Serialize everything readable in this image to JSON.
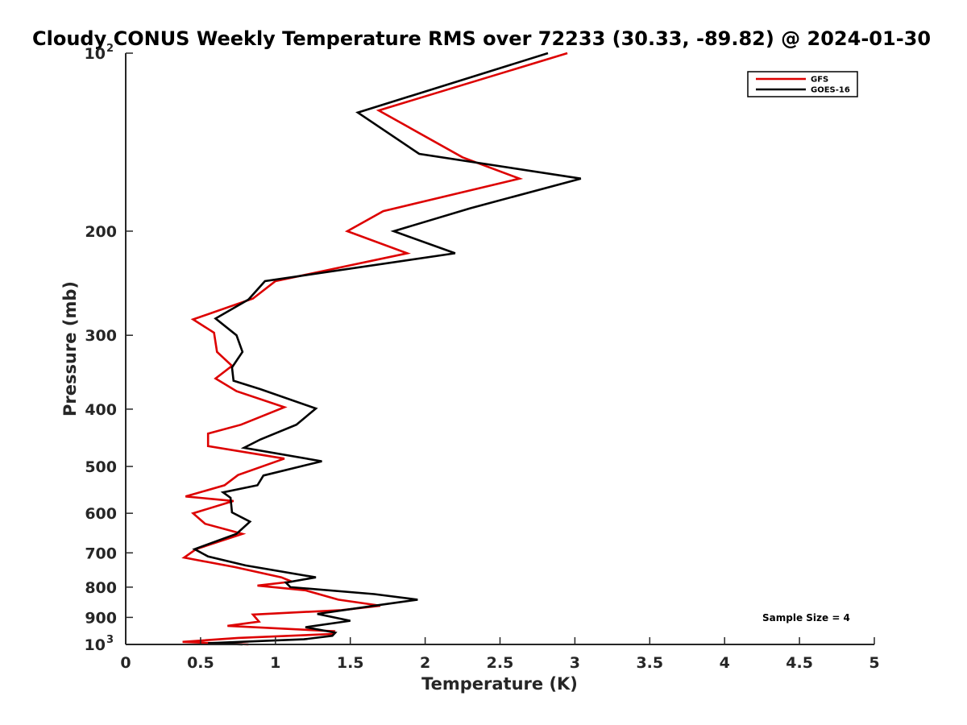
{
  "chart_data": {
    "type": "line",
    "title": "Cloudy CONUS Weekly Temperature RMS over 72233 (30.33, -89.82) @ 2024-01-30",
    "xlabel": "Temperature (K)",
    "ylabel": "Pressure (mb)",
    "xlim": [
      0,
      5
    ],
    "ylim": [
      100,
      1000
    ],
    "yscale": "log",
    "yreversed": true,
    "grid": false,
    "legend_position": "top-right",
    "x_ticks": [
      0,
      0.5,
      1,
      1.5,
      2,
      2.5,
      3,
      3.5,
      4,
      4.5,
      5
    ],
    "x_tick_labels": [
      "0",
      "0.5",
      "1",
      "1.5",
      "2",
      "2.5",
      "3",
      "3.5",
      "4",
      "4.5",
      "5"
    ],
    "y_ticks": [
      {
        "value": 100,
        "base": "10",
        "exp": "2"
      },
      {
        "value": 200,
        "label": "200"
      },
      {
        "value": 300,
        "label": "300"
      },
      {
        "value": 400,
        "label": "400"
      },
      {
        "value": 500,
        "label": "500"
      },
      {
        "value": 600,
        "label": "600"
      },
      {
        "value": 700,
        "label": "700"
      },
      {
        "value": 800,
        "label": "800"
      },
      {
        "value": 900,
        "label": "900"
      },
      {
        "value": 1000,
        "base": "10",
        "exp": "3"
      }
    ],
    "annotation": "Sample Size = 4",
    "series": [
      {
        "name": "GFS",
        "color": "#dd0000",
        "points": [
          [
            2.95,
            100
          ],
          [
            1.69,
            125
          ],
          [
            2.25,
            150
          ],
          [
            2.63,
            163
          ],
          [
            1.72,
            185
          ],
          [
            1.48,
            200
          ],
          [
            1.88,
            218
          ],
          [
            1.0,
            243
          ],
          [
            0.85,
            260
          ],
          [
            0.45,
            282
          ],
          [
            0.59,
            297
          ],
          [
            0.61,
            320
          ],
          [
            0.71,
            338
          ],
          [
            0.6,
            355
          ],
          [
            0.74,
            373
          ],
          [
            1.06,
            397
          ],
          [
            0.77,
            425
          ],
          [
            0.55,
            440
          ],
          [
            0.55,
            462
          ],
          [
            1.06,
            485
          ],
          [
            0.75,
            517
          ],
          [
            0.66,
            538
          ],
          [
            0.4,
            562
          ],
          [
            0.72,
            572
          ],
          [
            0.45,
            600
          ],
          [
            0.53,
            625
          ],
          [
            0.78,
            650
          ],
          [
            0.47,
            690
          ],
          [
            0.39,
            713
          ],
          [
            0.73,
            740
          ],
          [
            1.04,
            770
          ],
          [
            1.11,
            783
          ],
          [
            0.88,
            795
          ],
          [
            1.2,
            810
          ],
          [
            1.42,
            840
          ],
          [
            1.7,
            860
          ],
          [
            1.44,
            875
          ],
          [
            0.85,
            890
          ],
          [
            0.89,
            915
          ],
          [
            0.68,
            930
          ],
          [
            1.39,
            950
          ],
          [
            1.38,
            960
          ],
          [
            0.75,
            975
          ],
          [
            0.38,
            990
          ],
          [
            0.82,
            1000
          ]
        ]
      },
      {
        "name": "GOES-16",
        "color": "#000000",
        "points": [
          [
            2.82,
            100
          ],
          [
            1.55,
            126
          ],
          [
            1.96,
            148
          ],
          [
            3.04,
            163
          ],
          [
            2.3,
            183
          ],
          [
            1.79,
            200
          ],
          [
            2.2,
            218
          ],
          [
            0.93,
            243
          ],
          [
            0.82,
            261
          ],
          [
            0.6,
            281
          ],
          [
            0.74,
            300
          ],
          [
            0.78,
            320
          ],
          [
            0.71,
            340
          ],
          [
            0.72,
            358
          ],
          [
            0.9,
            370
          ],
          [
            1.27,
            399
          ],
          [
            1.14,
            425
          ],
          [
            0.9,
            450
          ],
          [
            0.79,
            465
          ],
          [
            1.31,
            490
          ],
          [
            0.92,
            518
          ],
          [
            0.88,
            538
          ],
          [
            0.65,
            553
          ],
          [
            0.7,
            565
          ],
          [
            0.71,
            598
          ],
          [
            0.83,
            620
          ],
          [
            0.74,
            650
          ],
          [
            0.46,
            690
          ],
          [
            0.55,
            710
          ],
          [
            0.8,
            735
          ],
          [
            1.27,
            770
          ],
          [
            1.07,
            786
          ],
          [
            1.1,
            800
          ],
          [
            1.66,
            822
          ],
          [
            1.95,
            840
          ],
          [
            1.66,
            860
          ],
          [
            1.28,
            888
          ],
          [
            1.5,
            912
          ],
          [
            1.2,
            935
          ],
          [
            1.4,
            955
          ],
          [
            1.38,
            967
          ],
          [
            1.19,
            980
          ],
          [
            0.55,
            995
          ],
          [
            0.78,
            1000
          ]
        ]
      }
    ]
  }
}
